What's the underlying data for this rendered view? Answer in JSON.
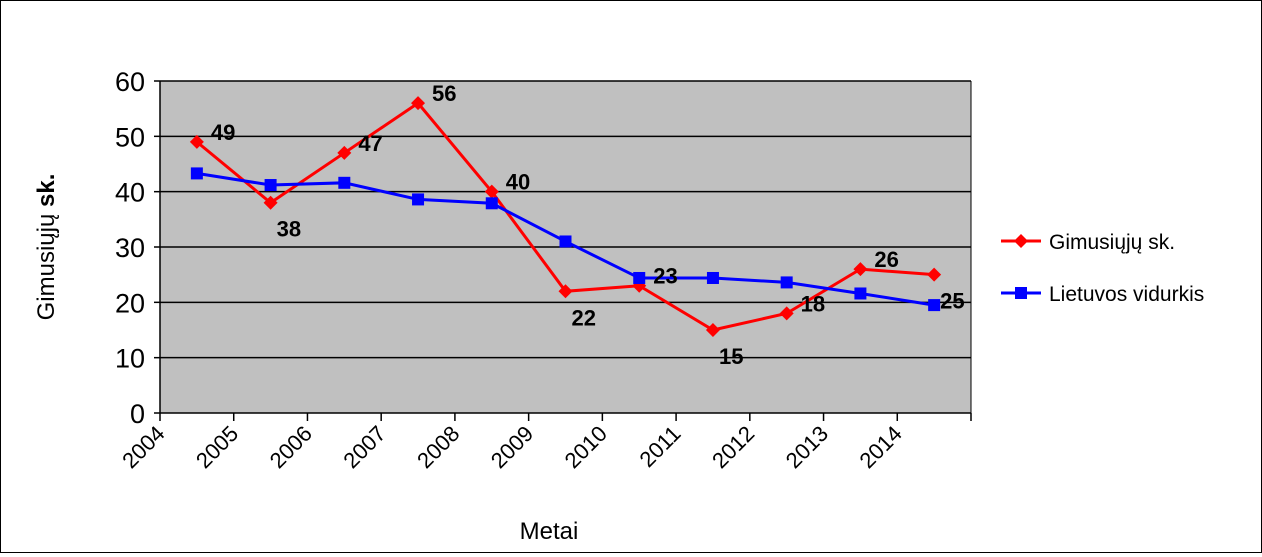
{
  "chart_data": {
    "type": "line",
    "title": "",
    "xlabel": "Metai",
    "ylabel_prefix": "Gimusiųjų ",
    "ylabel_bold": "sk.",
    "ylim": [
      0,
      60
    ],
    "yticks": [
      "0",
      "10",
      "20",
      "30",
      "40",
      "50",
      "60"
    ],
    "categories": [
      "2004",
      "2005",
      "2006",
      "2007",
      "2008",
      "2009",
      "2010",
      "2011",
      "2012",
      "2013",
      "2014"
    ],
    "grid": true,
    "legend_position": "right",
    "plot_background": "#c0c0c0",
    "series": [
      {
        "name": "Gimusiųjų sk.",
        "color": "#ff0000",
        "marker": "diamond",
        "values": [
          49,
          38,
          47,
          56,
          40,
          22,
          23,
          15,
          18,
          26,
          25
        ],
        "labels": [
          "49",
          "38",
          "47",
          "56",
          "40",
          "22",
          "23",
          "15",
          "18",
          "26",
          "25"
        ]
      },
      {
        "name": "Lietuvos vidurkis",
        "color": "#0000ff",
        "marker": "square",
        "values": [
          43.3,
          41.2,
          41.6,
          38.6,
          37.9,
          31,
          24.4,
          24.4,
          23.6,
          21.6,
          19.5
        ]
      }
    ]
  }
}
